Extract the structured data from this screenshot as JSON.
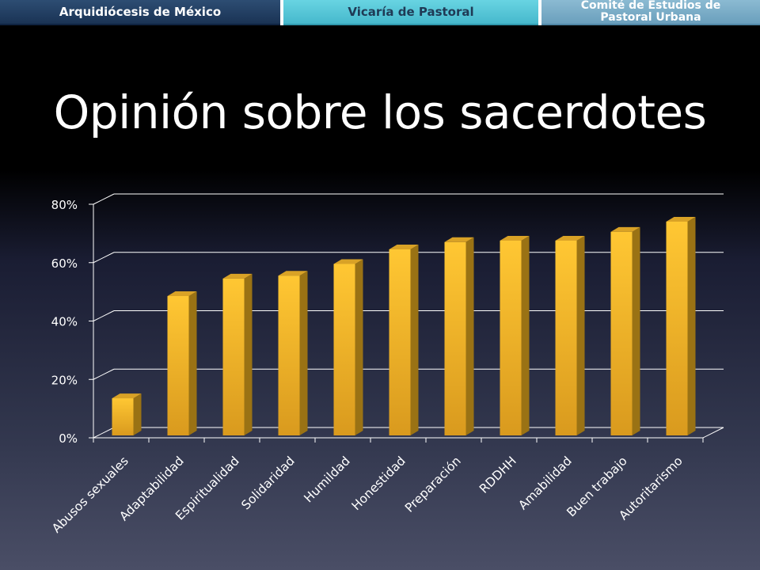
{
  "header": {
    "tab1": "Arquidiócesis de México",
    "tab2": "Vicaría de Pastoral",
    "tab3_line1": "Comité de Estudios de",
    "tab3_line2": "Pastoral Urbana"
  },
  "slide": {
    "title": "Opinión sobre los sacerdotes"
  },
  "chart_data": {
    "type": "bar",
    "title": "",
    "xlabel": "",
    "ylabel": "",
    "categories": [
      "Abusos sexuales",
      "Adaptabilidad",
      "Espiritualidad",
      "Solidaridad",
      "Humildad",
      "Honestidad",
      "Preparación",
      "RDDHH",
      "Amabilidad",
      "Buen trabajo",
      "Autoritarismo"
    ],
    "values": [
      13,
      48,
      54,
      55,
      59,
      64,
      66.5,
      67,
      67,
      70,
      73.5
    ],
    "ylim": [
      0,
      80
    ],
    "yticks": [
      0,
      20,
      40,
      60,
      80
    ],
    "ytick_labels": [
      "0%",
      "20%",
      "40%",
      "60%",
      "80%"
    ],
    "grid": true,
    "legend": "none",
    "colors": {
      "bar_front": "#f5b82a",
      "bar_side": "#9a7214",
      "bar_top": "#d9a226",
      "grid": "#ffffff"
    }
  }
}
